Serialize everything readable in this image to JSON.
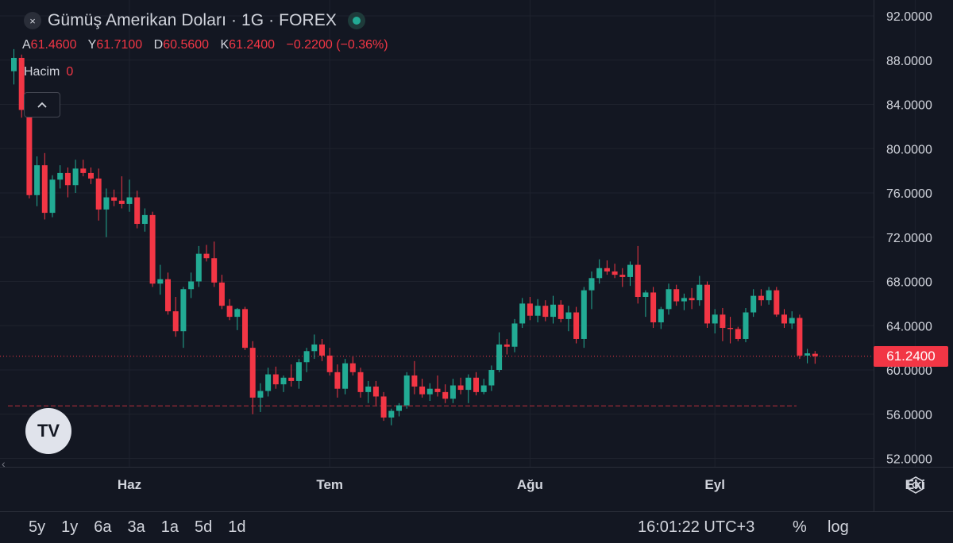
{
  "header": {
    "close_icon": "×",
    "title": "Gümüş Amerikan Doları · 1G · FOREX",
    "ohlc": [
      {
        "label": "A",
        "value": "61.4600"
      },
      {
        "label": "Y",
        "value": "61.7100"
      },
      {
        "label": "D",
        "value": "60.5600"
      },
      {
        "label": "K",
        "value": "61.2400"
      }
    ],
    "change": "−0.2200 (−0.36%)",
    "volume_label": "Hacim",
    "volume_value": "0",
    "collapse_icon": "chevron-up-icon"
  },
  "logo_text": "TV",
  "last_price_label": "61.2400",
  "left_arrow": "‹",
  "range_buttons": [
    "5y",
    "1y",
    "6a",
    "3a",
    "1a",
    "5d",
    "1d"
  ],
  "clock": "16:01:22 UTC+3",
  "percent_label": "%",
  "log_label": "log",
  "colors": {
    "up": "#22ab94",
    "down": "#f23645",
    "background": "#131722",
    "grid": "#1e222d",
    "text": "#d1d4dc"
  },
  "chart_data": {
    "type": "candlestick",
    "title": "Gümüş Amerikan Doları · 1G · FOREX",
    "ylim": [
      51.2,
      92.7
    ],
    "y_ticks": [
      "92.0000",
      "88.0000",
      "84.0000",
      "80.0000",
      "76.0000",
      "72.0000",
      "68.0000",
      "64.0000",
      "60.0000",
      "56.0000",
      "52.0000"
    ],
    "y_tick_values": [
      92,
      88,
      84,
      80,
      76,
      72,
      68,
      64,
      60,
      56,
      52
    ],
    "x_ticks": [
      {
        "label": "Haz",
        "index": 15
      },
      {
        "label": "Tem",
        "index": 41
      },
      {
        "label": "Ağu",
        "index": 67
      },
      {
        "label": "Eyl",
        "index": 91
      },
      {
        "label": "Eki",
        "index": 117
      }
    ],
    "last_price": 61.24,
    "reference_line": 56.75,
    "candles": [
      [
        87.0,
        89.0,
        85.8,
        88.2
      ],
      [
        88.2,
        88.5,
        82.8,
        83.5
      ],
      [
        83.5,
        84.0,
        75.5,
        75.8
      ],
      [
        75.8,
        79.3,
        74.8,
        78.5
      ],
      [
        78.5,
        79.6,
        73.6,
        74.2
      ],
      [
        74.2,
        77.6,
        73.8,
        77.2
      ],
      [
        77.2,
        78.5,
        76.4,
        77.8
      ],
      [
        77.8,
        78.3,
        75.6,
        76.7
      ],
      [
        76.7,
        79.0,
        76.0,
        78.2
      ],
      [
        78.2,
        79.0,
        77.5,
        77.8
      ],
      [
        77.8,
        78.3,
        76.8,
        77.3
      ],
      [
        77.3,
        78.2,
        73.5,
        74.5
      ],
      [
        74.5,
        76.4,
        72.0,
        75.6
      ],
      [
        75.6,
        76.3,
        74.8,
        75.3
      ],
      [
        75.3,
        77.5,
        74.6,
        75.0
      ],
      [
        75.0,
        77.2,
        74.3,
        75.6
      ],
      [
        75.6,
        76.2,
        72.8,
        73.2
      ],
      [
        73.2,
        74.6,
        72.5,
        74.0
      ],
      [
        74.0,
        74.3,
        67.5,
        67.8
      ],
      [
        67.8,
        69.5,
        66.8,
        68.2
      ],
      [
        68.2,
        68.8,
        65.0,
        65.3
      ],
      [
        65.3,
        66.6,
        63.0,
        63.5
      ],
      [
        63.5,
        67.5,
        62.0,
        67.3
      ],
      [
        67.3,
        68.8,
        66.5,
        68.0
      ],
      [
        68.0,
        71.2,
        67.5,
        70.5
      ],
      [
        70.5,
        71.3,
        69.8,
        70.1
      ],
      [
        70.1,
        71.6,
        67.5,
        67.9
      ],
      [
        67.9,
        68.6,
        65.5,
        65.8
      ],
      [
        65.8,
        66.4,
        64.5,
        64.8
      ],
      [
        64.8,
        65.6,
        63.6,
        65.5
      ],
      [
        65.5,
        65.7,
        61.8,
        62.0
      ],
      [
        62.0,
        62.6,
        56.0,
        57.5
      ],
      [
        57.5,
        58.8,
        56.2,
        58.1
      ],
      [
        58.1,
        60.2,
        57.6,
        59.6
      ],
      [
        59.6,
        60.3,
        58.3,
        58.7
      ],
      [
        58.7,
        59.5,
        58.0,
        59.3
      ],
      [
        59.3,
        60.5,
        58.5,
        59.0
      ],
      [
        59.0,
        61.0,
        58.3,
        60.7
      ],
      [
        60.7,
        62.0,
        59.8,
        61.7
      ],
      [
        61.7,
        63.2,
        61.0,
        62.3
      ],
      [
        62.3,
        62.8,
        60.8,
        61.3
      ],
      [
        61.3,
        62.0,
        59.5,
        59.8
      ],
      [
        59.8,
        60.5,
        57.5,
        58.3
      ],
      [
        58.3,
        61.0,
        57.8,
        60.6
      ],
      [
        60.6,
        61.2,
        59.5,
        59.8
      ],
      [
        59.8,
        60.2,
        57.5,
        58.0
      ],
      [
        58.0,
        59.0,
        57.0,
        58.5
      ],
      [
        58.5,
        59.0,
        56.8,
        57.6
      ],
      [
        57.6,
        58.0,
        55.4,
        55.7
      ],
      [
        55.7,
        56.5,
        55.0,
        56.3
      ],
      [
        56.3,
        57.0,
        55.8,
        56.8
      ],
      [
        56.8,
        59.8,
        56.5,
        59.5
      ],
      [
        59.5,
        60.8,
        57.8,
        58.5
      ],
      [
        58.5,
        59.2,
        57.5,
        57.8
      ],
      [
        57.8,
        58.8,
        57.2,
        58.3
      ],
      [
        58.3,
        59.5,
        57.6,
        58.0
      ],
      [
        58.0,
        58.7,
        57.0,
        57.4
      ],
      [
        57.4,
        59.2,
        57.0,
        58.6
      ],
      [
        58.6,
        59.3,
        57.8,
        58.2
      ],
      [
        58.2,
        59.6,
        57.0,
        59.3
      ],
      [
        59.3,
        59.8,
        57.7,
        58.0
      ],
      [
        58.0,
        59.2,
        57.8,
        58.6
      ],
      [
        58.6,
        60.4,
        58.1,
        60.0
      ],
      [
        60.0,
        63.4,
        59.8,
        62.3
      ],
      [
        62.3,
        62.8,
        61.4,
        62.1
      ],
      [
        62.1,
        64.6,
        61.6,
        64.2
      ],
      [
        64.2,
        66.5,
        63.8,
        66.0
      ],
      [
        66.0,
        66.6,
        64.5,
        64.9
      ],
      [
        64.9,
        66.4,
        64.3,
        65.8
      ],
      [
        65.8,
        66.3,
        64.4,
        64.8
      ],
      [
        64.8,
        66.7,
        64.2,
        65.9
      ],
      [
        65.9,
        66.3,
        64.3,
        64.6
      ],
      [
        64.6,
        65.8,
        63.5,
        65.2
      ],
      [
        65.2,
        65.7,
        62.4,
        62.8
      ],
      [
        62.8,
        67.5,
        62.0,
        67.2
      ],
      [
        67.2,
        68.9,
        65.5,
        68.3
      ],
      [
        68.3,
        70.0,
        67.8,
        69.2
      ],
      [
        69.2,
        69.9,
        68.6,
        68.9
      ],
      [
        68.9,
        69.6,
        68.3,
        68.6
      ],
      [
        68.6,
        69.2,
        67.5,
        68.4
      ],
      [
        68.4,
        69.8,
        67.6,
        69.5
      ],
      [
        69.5,
        71.2,
        66.0,
        66.6
      ],
      [
        66.6,
        67.2,
        64.8,
        67.0
      ],
      [
        67.0,
        67.5,
        63.8,
        64.3
      ],
      [
        64.3,
        65.7,
        63.7,
        65.5
      ],
      [
        65.5,
        67.8,
        65.0,
        67.3
      ],
      [
        67.3,
        67.7,
        65.8,
        66.2
      ],
      [
        66.2,
        66.9,
        65.4,
        66.5
      ],
      [
        66.5,
        67.4,
        65.5,
        66.3
      ],
      [
        66.3,
        68.5,
        65.8,
        67.7
      ],
      [
        67.7,
        68.0,
        63.8,
        64.2
      ],
      [
        64.2,
        65.5,
        63.3,
        65.0
      ],
      [
        65.0,
        65.6,
        62.6,
        63.8
      ],
      [
        63.8,
        64.8,
        62.4,
        63.7
      ],
      [
        63.7,
        63.9,
        62.6,
        62.8
      ],
      [
        62.8,
        65.6,
        62.5,
        65.2
      ],
      [
        65.2,
        67.3,
        64.8,
        66.7
      ],
      [
        66.7,
        67.3,
        65.8,
        66.3
      ],
      [
        66.3,
        67.5,
        65.9,
        67.2
      ],
      [
        67.2,
        67.5,
        64.8,
        65.0
      ],
      [
        65.0,
        65.5,
        63.8,
        64.2
      ],
      [
        64.2,
        65.3,
        63.7,
        64.7
      ],
      [
        64.7,
        65.0,
        61.0,
        61.3
      ],
      [
        61.3,
        61.9,
        60.6,
        61.5
      ],
      [
        61.46,
        61.71,
        60.56,
        61.24
      ]
    ]
  }
}
